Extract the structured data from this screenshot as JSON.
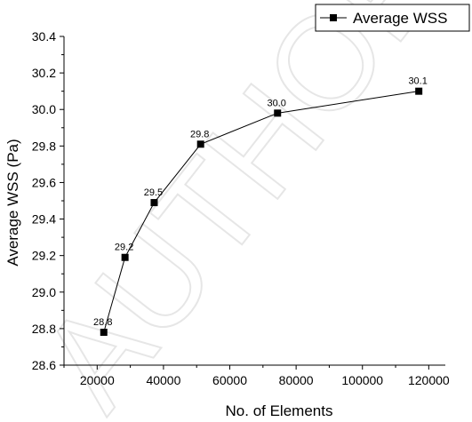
{
  "watermark_text": "AUTHOR COPY",
  "chart_data": {
    "type": "line",
    "xlabel": "No. of Elements",
    "ylabel": "Average WSS (Pa)",
    "xlim": [
      10000,
      125000
    ],
    "ylim": [
      28.6,
      30.4
    ],
    "xticks": [
      20000,
      40000,
      60000,
      80000,
      100000,
      120000
    ],
    "yticks": [
      28.6,
      28.8,
      29.0,
      29.2,
      29.4,
      29.6,
      29.8,
      30.0,
      30.2,
      30.4
    ],
    "xtick_labels": [
      "20000",
      "40000",
      "60000",
      "80000",
      "100000",
      "120000"
    ],
    "ytick_labels": [
      "28.6",
      "28.8",
      "29.0",
      "29.2",
      "29.4",
      "29.6",
      "29.8",
      "30.0",
      "30.2",
      "30.4"
    ],
    "legend_position": "top-right",
    "grid": false,
    "series": [
      {
        "name": "Average WSS",
        "color": "#000000",
        "marker": "square",
        "x": [
          22000,
          28400,
          37200,
          51200,
          74400,
          117000
        ],
        "y": [
          28.78,
          29.19,
          29.49,
          29.81,
          29.98,
          30.1
        ],
        "point_labels": [
          "28.8",
          "29.2",
          "29.5",
          "29.8",
          "30.0",
          "30.1"
        ]
      }
    ]
  }
}
